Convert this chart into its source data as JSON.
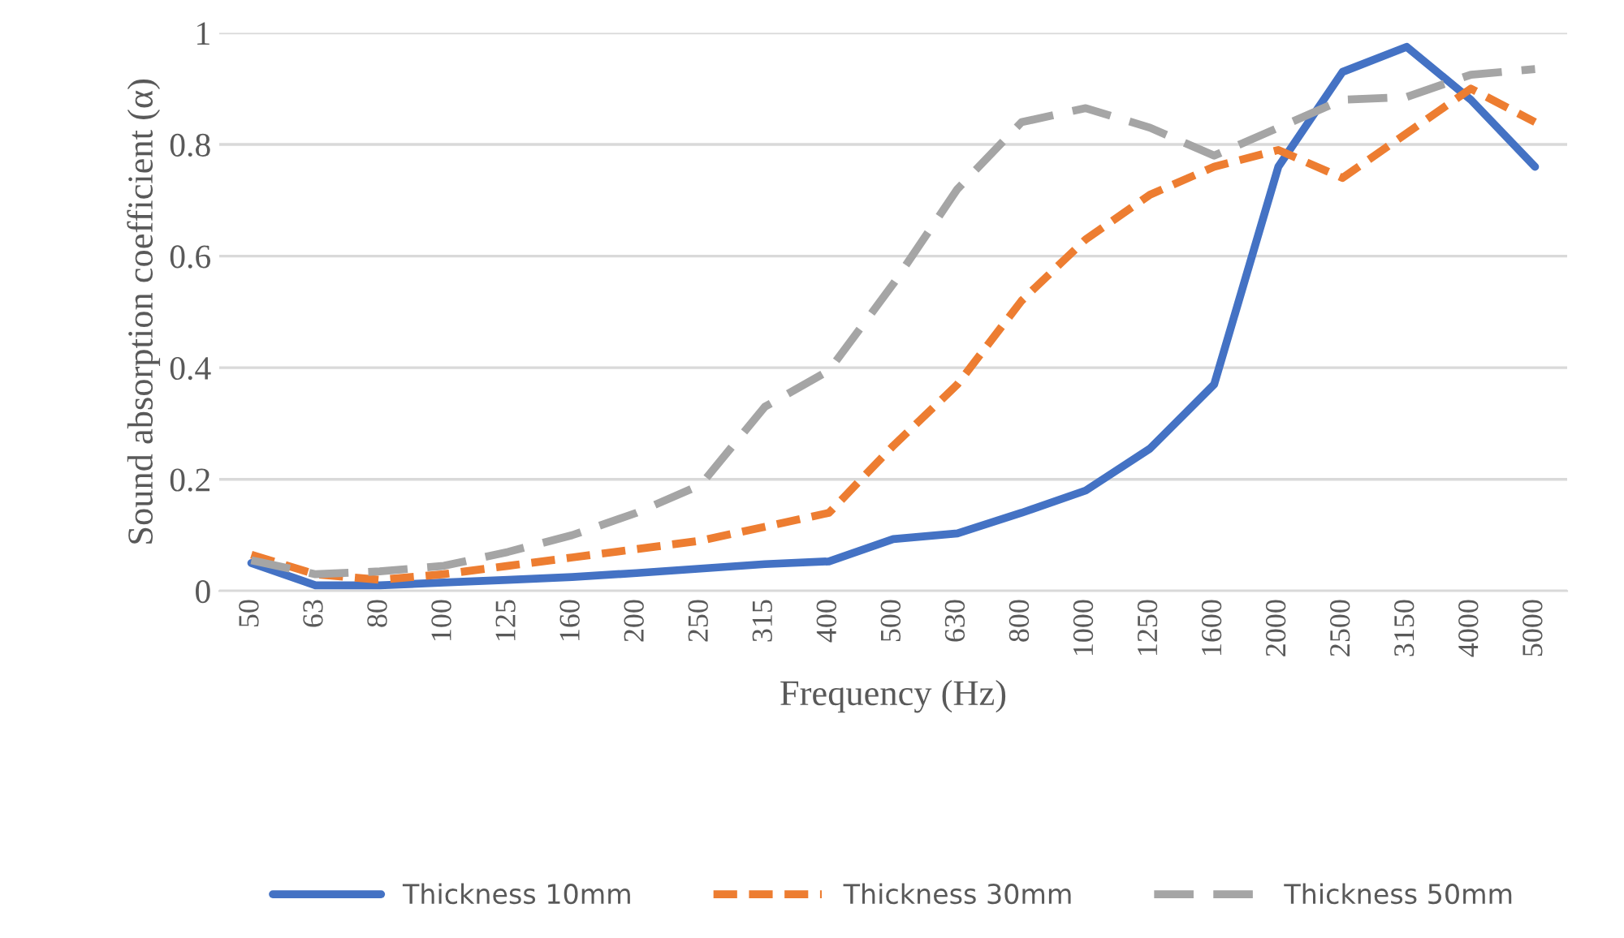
{
  "chart_data": {
    "type": "line",
    "xlabel": "Frequency (Hz)",
    "ylabel": "Sound absorption coefficient (α)",
    "categories": [
      "50",
      "63",
      "80",
      "100",
      "125",
      "160",
      "200",
      "250",
      "315",
      "400",
      "500",
      "630",
      "800",
      "1000",
      "1250",
      "1600",
      "2000",
      "2500",
      "3150",
      "4000",
      "5000"
    ],
    "series": [
      {
        "name": "Thickness 10mm",
        "color": "#4472c4",
        "line_style": "solid",
        "values": [
          0.05,
          0.01,
          0.01,
          0.015,
          0.02,
          0.025,
          0.032,
          0.04,
          0.048,
          0.053,
          0.093,
          0.103,
          0.14,
          0.18,
          0.255,
          0.37,
          0.76,
          0.93,
          0.975,
          0.88,
          0.76
        ]
      },
      {
        "name": "Thickness 30mm",
        "color": "#ed7d31",
        "line_style": "dashed",
        "values": [
          0.065,
          0.03,
          0.02,
          0.03,
          0.045,
          0.06,
          0.075,
          0.09,
          0.115,
          0.14,
          0.26,
          0.37,
          0.52,
          0.63,
          0.71,
          0.76,
          0.79,
          0.74,
          0.82,
          0.9,
          0.84
        ]
      },
      {
        "name": "Thickness 50mm",
        "color": "#a5a5a5",
        "line_style": "longdash",
        "values": [
          0.055,
          0.03,
          0.035,
          0.045,
          0.07,
          0.1,
          0.14,
          0.19,
          0.33,
          0.395,
          0.55,
          0.72,
          0.84,
          0.865,
          0.83,
          0.78,
          0.83,
          0.88,
          0.885,
          0.925,
          0.935
        ]
      }
    ],
    "ylim": [
      0,
      1
    ],
    "yticks": [
      0,
      0.2,
      0.4,
      0.6,
      0.8,
      1
    ],
    "grid": "y",
    "legend": "bottom",
    "marker": "none"
  }
}
